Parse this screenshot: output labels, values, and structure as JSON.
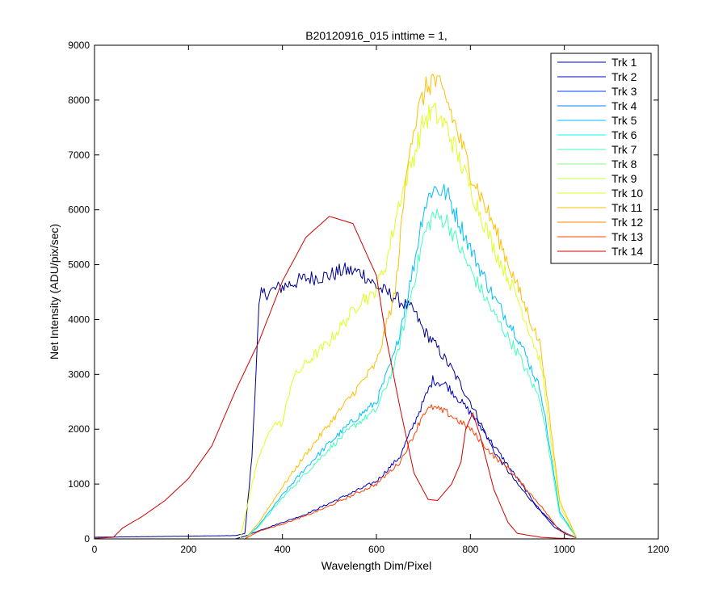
{
  "chart_data": {
    "type": "line",
    "title": "B20120916_015 inttime = 1,",
    "xlabel": "Wavelength Dim/Pixel",
    "ylabel": "Net Intensity (ADU/pix/sec)",
    "xlim": [
      0,
      1200
    ],
    "ylim": [
      0,
      9000
    ],
    "xticks": [
      0,
      200,
      400,
      600,
      800,
      1000,
      1200
    ],
    "yticks": [
      0,
      1000,
      2000,
      3000,
      4000,
      5000,
      6000,
      7000,
      8000,
      9000
    ],
    "legend_position": "top-right",
    "series": [
      {
        "name": "Trk 1",
        "color": "#00008F",
        "x": [
          0,
          300,
          320,
          335,
          350,
          355,
          400,
          450,
          500,
          530,
          570,
          600,
          640,
          680,
          700,
          720,
          760,
          800,
          850,
          900,
          950,
          980,
          1000,
          1025
        ],
        "y": [
          30,
          60,
          100,
          1500,
          4200,
          4450,
          4600,
          4750,
          4800,
          4900,
          4850,
          4600,
          4400,
          4150,
          3800,
          3600,
          3100,
          2500,
          1600,
          1000,
          500,
          250,
          100,
          20
        ]
      },
      {
        "name": "Trk 2",
        "color": "#0000BF",
        "x": [
          0,
          300,
          320,
          350,
          400,
          450,
          500,
          550,
          600,
          650,
          700,
          720,
          750,
          800,
          850,
          900,
          950,
          980,
          1025
        ],
        "y": [
          0,
          0,
          50,
          150,
          300,
          450,
          650,
          850,
          1050,
          1500,
          2500,
          2900,
          2800,
          2300,
          1700,
          1100,
          500,
          200,
          20
        ]
      },
      {
        "name": "Trk 3",
        "color": "#0040FF",
        "x": [
          0,
          320,
          1025
        ],
        "y": [
          0,
          0,
          0
        ]
      },
      {
        "name": "Trk 4",
        "color": "#0080FF",
        "x": [
          0,
          320,
          1025
        ],
        "y": [
          0,
          0,
          0
        ]
      },
      {
        "name": "Trk 5",
        "color": "#00BFFF",
        "x": [
          0,
          320,
          350,
          400,
          450,
          500,
          550,
          600,
          640,
          680,
          700,
          720,
          750,
          800,
          850,
          900,
          950,
          990,
          1025
        ],
        "y": [
          0,
          0,
          250,
          800,
          1300,
          1750,
          2150,
          2500,
          3400,
          5000,
          6000,
          6400,
          6300,
          5300,
          4400,
          3700,
          2700,
          500,
          30
        ]
      },
      {
        "name": "Trk 6",
        "color": "#00FFFF",
        "x": [
          0,
          320,
          1025
        ],
        "y": [
          0,
          0,
          0
        ]
      },
      {
        "name": "Trk 7",
        "color": "#40FFBF",
        "x": [
          0,
          320,
          350,
          400,
          450,
          500,
          550,
          600,
          640,
          680,
          700,
          720,
          750,
          800,
          850,
          900,
          950,
          990,
          1025
        ],
        "y": [
          0,
          0,
          230,
          750,
          1200,
          1650,
          2050,
          2350,
          3200,
          4700,
          5500,
          5900,
          5800,
          4900,
          4100,
          3400,
          2500,
          450,
          30
        ]
      },
      {
        "name": "Trk 8",
        "color": "#80FF80",
        "x": [
          0,
          320,
          1025
        ],
        "y": [
          0,
          0,
          0
        ]
      },
      {
        "name": "Trk 9",
        "color": "#BFFF40",
        "x": [
          0,
          320,
          1025
        ],
        "y": [
          0,
          0,
          0
        ]
      },
      {
        "name": "Trk 10",
        "color": "#DFFF20",
        "x": [
          0,
          310,
          330,
          350,
          380,
          400,
          420,
          450,
          500,
          550,
          570,
          590,
          620,
          650,
          680,
          700,
          720,
          750,
          800,
          850,
          900,
          950,
          990,
          1025
        ],
        "y": [
          0,
          0,
          800,
          1500,
          2100,
          2100,
          2900,
          3200,
          3600,
          4150,
          4400,
          4400,
          5000,
          6200,
          7000,
          7600,
          7800,
          7500,
          6400,
          5300,
          4400,
          3200,
          600,
          40
        ]
      },
      {
        "name": "Trk 11",
        "color": "#FFBF00",
        "x": [
          0,
          320,
          350,
          400,
          450,
          500,
          550,
          600,
          640,
          670,
          700,
          720,
          750,
          800,
          850,
          900,
          950,
          990,
          1025
        ],
        "y": [
          0,
          0,
          300,
          950,
          1550,
          2100,
          2650,
          3200,
          4500,
          7200,
          8100,
          8400,
          8000,
          6700,
          5700,
          4600,
          3500,
          700,
          40
        ]
      },
      {
        "name": "Trk 12",
        "color": "#FF8000",
        "x": [
          0,
          320,
          1025
        ],
        "y": [
          0,
          0,
          0
        ]
      },
      {
        "name": "Trk 13",
        "color": "#FF4000",
        "x": [
          0,
          320,
          350,
          400,
          450,
          500,
          550,
          600,
          650,
          680,
          700,
          720,
          750,
          800,
          850,
          880,
          900,
          950,
          990,
          1025
        ],
        "y": [
          0,
          0,
          140,
          270,
          420,
          600,
          800,
          1000,
          1400,
          1900,
          2300,
          2400,
          2300,
          2000,
          1500,
          1300,
          1100,
          600,
          150,
          20
        ]
      },
      {
        "name": "Trk 14",
        "color": "#D00000",
        "x": [
          0,
          40,
          60,
          100,
          150,
          200,
          250,
          300,
          350,
          400,
          450,
          500,
          550,
          600,
          620,
          650,
          680,
          710,
          730,
          760,
          780,
          790,
          805,
          820,
          850,
          880,
          900,
          950,
          990,
          1000,
          1025
        ],
        "y": [
          10,
          30,
          200,
          400,
          700,
          1100,
          1700,
          2700,
          3600,
          4700,
          5500,
          5880,
          5750,
          4800,
          3700,
          2400,
          1200,
          720,
          700,
          1000,
          1400,
          2000,
          2300,
          1900,
          900,
          300,
          100,
          30,
          10,
          10,
          0
        ]
      }
    ]
  }
}
